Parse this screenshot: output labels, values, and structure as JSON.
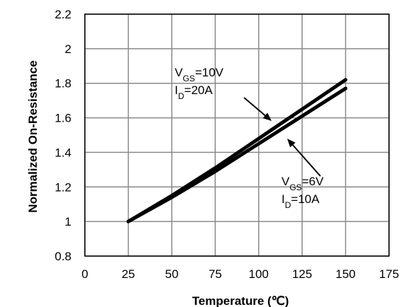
{
  "chart_data": {
    "type": "line",
    "title": "",
    "xlabel": "Temperature (℃)",
    "ylabel": "Normalized On-Resistance",
    "xlim": [
      0,
      175
    ],
    "ylim": [
      0.8,
      2.2
    ],
    "xticks": [
      0,
      25,
      50,
      75,
      100,
      125,
      150,
      175
    ],
    "xtick_labels": [
      "0",
      "25",
      "50",
      "75",
      "100",
      "125",
      "150",
      "175"
    ],
    "yticks": [
      0.8,
      1,
      1.2,
      1.4,
      1.6,
      1.8,
      2,
      2.2
    ],
    "ytick_labels": [
      "0.8",
      "1",
      "1.2",
      "1.4",
      "1.6",
      "1.8",
      "2",
      "2.2"
    ],
    "grid": true,
    "series": [
      {
        "x": [
          25,
          50,
          75,
          100,
          125,
          150
        ],
        "y": [
          1.0,
          1.15,
          1.31,
          1.48,
          1.65,
          1.82
        ]
      },
      {
        "x": [
          25,
          50,
          75,
          100,
          125,
          150
        ],
        "y": [
          1.0,
          1.14,
          1.29,
          1.45,
          1.61,
          1.77
        ]
      }
    ],
    "annotations": [
      {
        "label": "VGS=10V, ID=20A",
        "lines": [
          {
            "main": "V",
            "sub": "GS",
            "rest": "=10V"
          },
          {
            "main": "I",
            "sub": "D",
            "rest": "=20A"
          }
        ]
      },
      {
        "label": "VGS=6V, ID=10A",
        "lines": [
          {
            "main": "V",
            "sub": "GS",
            "rest": "=6V"
          },
          {
            "main": "I",
            "sub": "D",
            "rest": "=10A"
          }
        ]
      }
    ]
  }
}
